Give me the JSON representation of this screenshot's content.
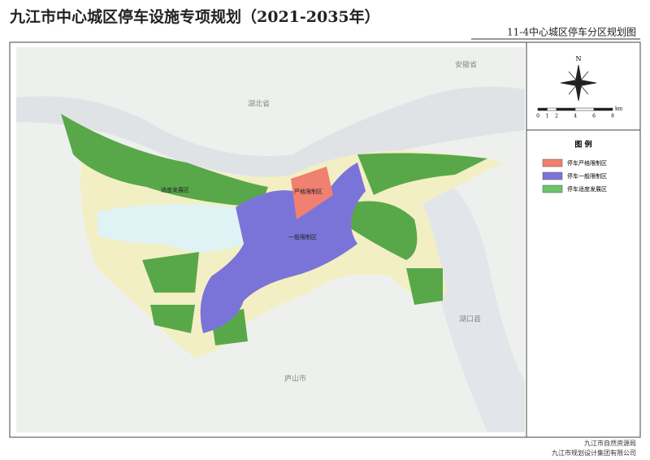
{
  "header": {
    "title": "九江市中心城区停车设施专项规划（2021-2035年）",
    "subtitle": "11-4中心城区停车分区规划图"
  },
  "map_labels": {
    "province_north": "湖北省",
    "province_east": "安徽省",
    "county_east": "湖口县",
    "city_south": "庐山市",
    "zone_green": "适度发展区",
    "zone_red": "严格限制区",
    "zone_blue": "一般限制区"
  },
  "north_arrow": "N",
  "scale_bar": {
    "ticks": [
      0,
      1,
      2,
      4,
      6,
      8
    ],
    "unit": "km"
  },
  "legend": {
    "title": "图 例",
    "items": [
      {
        "label": "停车严格限制区",
        "color": "#f08070"
      },
      {
        "label": "停车一般限制区",
        "color": "#7b74d8"
      },
      {
        "label": "停车适度发展区",
        "color": "#6cc36a"
      }
    ]
  },
  "footer": [
    "九江市自然资源局",
    "九江市规划设计集团有限公司"
  ]
}
